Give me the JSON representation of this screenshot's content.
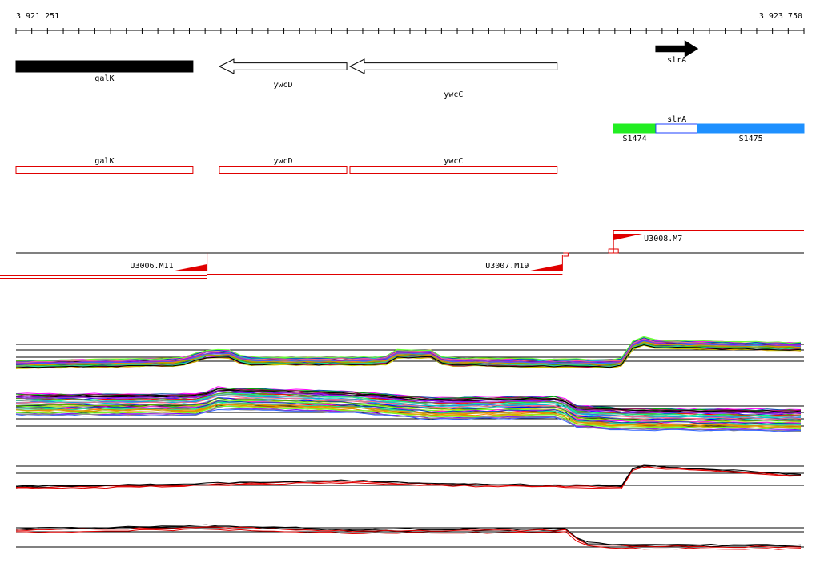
{
  "coordinates": {
    "start_label": "3 921 251",
    "end_label": "3 923 750",
    "start_bp": 3921251,
    "end_bp": 3923750
  },
  "gene_track": {
    "genes": [
      {
        "name": "galK",
        "start_bp": 3921251,
        "end_bp": 3921812,
        "strand": "-",
        "style": "filled",
        "color": "#000000",
        "row": 0
      },
      {
        "name": "ywcD",
        "start_bp": 3921896,
        "end_bp": 3922300,
        "strand": "-",
        "style": "outline",
        "color": "#000000",
        "row": 0
      },
      {
        "name": "ywcC",
        "start_bp": 3922310,
        "end_bp": 3922967,
        "strand": "-",
        "style": "outline",
        "color": "#000000",
        "row": 1
      },
      {
        "name": "slrA",
        "start_bp": 3923280,
        "end_bp": 3923413,
        "strand": "+",
        "style": "filled",
        "color": "#000000",
        "row": 0
      }
    ]
  },
  "segment_track": {
    "segments": [
      {
        "name": "S1474",
        "start_bp": 3923146,
        "end_bp": 3923280,
        "color": "#22ee22",
        "label_side": "below"
      },
      {
        "name": "slrA",
        "start_bp": 3923280,
        "end_bp": 3923413,
        "color": "#ffffff",
        "label_side": "above"
      },
      {
        "name": "S1475",
        "start_bp": 3923413,
        "end_bp": 3923750,
        "color": "#1e90ff",
        "label_side": "below"
      }
    ]
  },
  "cds_track": {
    "boxes": [
      {
        "name": "galK",
        "start_bp": 3921251,
        "end_bp": 3921812
      },
      {
        "name": "ywcD",
        "start_bp": 3921896,
        "end_bp": 3922300
      },
      {
        "name": "ywcC",
        "start_bp": 3922310,
        "end_bp": 3922967
      }
    ]
  },
  "transcription_units": [
    {
      "name": "U3006.M11",
      "strand": "-",
      "promoter_bp": 3921857
    },
    {
      "name": "U3007.M19",
      "strand": "-",
      "promoter_bp": 3922984
    },
    {
      "name": "U3008.M7",
      "strand": "+",
      "promoter_bp": 3923146
    }
  ],
  "expression_panels": [
    {
      "name": "panel-1",
      "style": "multicolor"
    },
    {
      "name": "panel-2",
      "style": "multicolor"
    },
    {
      "name": "panel-3",
      "style": "black-red"
    },
    {
      "name": "panel-4",
      "style": "black-red"
    }
  ],
  "colors": {
    "feature_red": "#e00000",
    "filled_gene": "#000000",
    "s1474": "#22ee22",
    "s1475": "#1e90ff"
  }
}
